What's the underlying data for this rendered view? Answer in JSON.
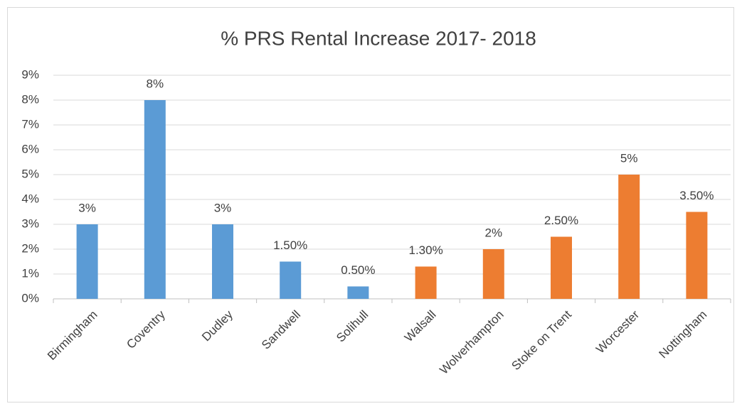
{
  "chart_data": {
    "type": "bar",
    "title": "% PRS Rental Increase 2017- 2018",
    "categories": [
      "Birmingham",
      "Coventry",
      "Dudley",
      "Sandwell",
      "Solihull",
      "Walsall",
      "Wolverhampton",
      "Stoke on Trent",
      "Worcester",
      "Nottingham"
    ],
    "values": [
      3,
      8,
      3,
      1.5,
      0.5,
      1.3,
      2,
      2.5,
      5,
      3.5
    ],
    "value_labels": [
      "3%",
      "8%",
      "3%",
      "1.50%",
      "0.50%",
      "1.30%",
      "2%",
      "2.50%",
      "5%",
      "3.50%"
    ],
    "colors": [
      "#5b9bd5",
      "#5b9bd5",
      "#5b9bd5",
      "#5b9bd5",
      "#5b9bd5",
      "#ed7d31",
      "#ed7d31",
      "#ed7d31",
      "#ed7d31",
      "#ed7d31"
    ],
    "ylim": [
      0,
      9
    ],
    "yticks": [
      {
        "value": 0,
        "label": "0%"
      },
      {
        "value": 1,
        "label": "1%"
      },
      {
        "value": 2,
        "label": "2%"
      },
      {
        "value": 3,
        "label": "3%"
      },
      {
        "value": 4,
        "label": "4%"
      },
      {
        "value": 5,
        "label": "5%"
      },
      {
        "value": 6,
        "label": "6%"
      },
      {
        "value": 7,
        "label": "7%"
      },
      {
        "value": 8,
        "label": "8%"
      },
      {
        "value": 9,
        "label": "9%"
      }
    ],
    "grid": true
  }
}
